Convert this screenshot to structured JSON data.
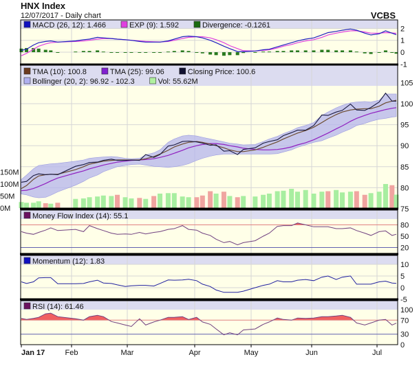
{
  "header": {
    "title": "HNX Index",
    "subtitle": "12/07/2017 - Daily chart",
    "brand": "VCBS"
  },
  "colors": {
    "plot_bg": "#ffffe8",
    "legend_bg": "#dcdcf0",
    "grid": "#d6d6d6",
    "macd": "#2020c0",
    "signal": "#e040e0",
    "divergence": "#2a7a20",
    "close": "#1a1a40",
    "tma10": "#6b4a2e",
    "tma25": "#9020c0",
    "bollinger": "#b4b4ec",
    "vol_up": "#a8eea0",
    "vol_down": "#f0a4a0",
    "mfi": "#704080",
    "momentum": "#2020a0",
    "rsi": "#704080",
    "overbought": "#e08080",
    "oversold": "#6060b0",
    "rsi_fill": "#f06060"
  },
  "legends": {
    "macd": [
      {
        "label": "MACD (26, 12): 1.466",
        "color": "#1010c0"
      },
      {
        "label": "EXP (9): 1.592",
        "color": "#e040e0"
      },
      {
        "label": "Divergence: -0.1261",
        "color": "#1a6a10"
      }
    ],
    "price_row1": [
      {
        "label": "TMA (10): 100.8",
        "color": "#6b3a1e"
      },
      {
        "label": "TMA (25): 99.06",
        "color": "#8020d0"
      },
      {
        "label": "Closing Price: 100.6",
        "color": "#101030"
      }
    ],
    "price_row2": [
      {
        "label": "Bollinger (20, 2): 96.92 - 102.3",
        "color": "#b0b0f0"
      },
      {
        "label": "Vol: 55.62M",
        "color": "#b0f0a0"
      }
    ],
    "mfi": [
      {
        "label": "Money Flow Index (14): 55.1",
        "color": "#6a1060"
      }
    ],
    "momentum": [
      {
        "label": "Momentum (12): 1.83",
        "color": "#1010c0"
      }
    ],
    "rsi": [
      {
        "label": "RSI (14): 61.46",
        "color": "#6a1060"
      }
    ]
  },
  "chart_data": {
    "type": "line",
    "x_ticks": [
      "Jan 17",
      "Feb",
      "Mar",
      "Apr",
      "May",
      "Jun",
      "Jul"
    ],
    "dates": [
      "2017-01-03",
      "2017-01-06",
      "2017-01-10",
      "2017-01-13",
      "2017-01-17",
      "2017-01-20",
      "2017-01-24",
      "2017-02-03",
      "2017-02-07",
      "2017-02-10",
      "2017-02-14",
      "2017-02-17",
      "2017-02-21",
      "2017-02-24",
      "2017-02-28",
      "2017-03-03",
      "2017-03-07",
      "2017-03-10",
      "2017-03-14",
      "2017-03-17",
      "2017-03-21",
      "2017-03-24",
      "2017-03-28",
      "2017-03-31",
      "2017-04-04",
      "2017-04-07",
      "2017-04-11",
      "2017-04-14",
      "2017-04-18",
      "2017-04-21",
      "2017-04-25",
      "2017-04-28",
      "2017-05-04",
      "2017-05-08",
      "2017-05-11",
      "2017-05-15",
      "2017-05-18",
      "2017-05-22",
      "2017-05-25",
      "2017-05-29",
      "2017-06-02",
      "2017-06-06",
      "2017-06-09",
      "2017-06-13",
      "2017-06-16",
      "2017-06-20",
      "2017-06-23",
      "2017-06-27",
      "2017-06-30",
      "2017-07-04",
      "2017-07-07",
      "2017-07-10",
      "2017-07-12"
    ],
    "panels": {
      "macd": {
        "y_ticks": [
          2,
          1,
          0,
          -1
        ],
        "ylim": [
          -1,
          2.6
        ],
        "macd": [
          0.15,
          0.25,
          0.6,
          0.8,
          0.9,
          0.95,
          0.85,
          0.95,
          1.05,
          1.1,
          1.25,
          1.2,
          1.15,
          1.1,
          1.05,
          1.0,
          0.9,
          0.85,
          0.85,
          0.85,
          0.95,
          1.1,
          1.3,
          1.35,
          1.3,
          1.2,
          1.0,
          0.8,
          0.5,
          0.3,
          0.05,
          0.05,
          0.1,
          0.2,
          0.25,
          0.45,
          0.6,
          0.8,
          0.95,
          1.1,
          1.2,
          1.45,
          1.65,
          1.75,
          1.85,
          1.95,
          1.85,
          1.6,
          1.45,
          1.55,
          1.8,
          1.6,
          1.466
        ],
        "signal": [
          -0.3,
          -0.1,
          0.25,
          0.5,
          0.7,
          0.8,
          0.85,
          0.9,
          0.95,
          1.0,
          1.1,
          1.15,
          1.15,
          1.1,
          1.05,
          1.0,
          0.95,
          0.9,
          0.88,
          0.86,
          0.9,
          1.0,
          1.15,
          1.25,
          1.3,
          1.3,
          1.2,
          1.05,
          0.8,
          0.55,
          0.3,
          0.12,
          0.1,
          0.15,
          0.2,
          0.35,
          0.5,
          0.65,
          0.8,
          0.95,
          1.05,
          1.25,
          1.45,
          1.6,
          1.7,
          1.8,
          1.8,
          1.7,
          1.6,
          1.6,
          1.65,
          1.62,
          1.592
        ],
        "divergence": [
          0.3,
          0.35,
          0.35,
          0.3,
          0.2,
          0.15,
          0,
          0.05,
          0.1,
          0.1,
          0.15,
          0.05,
          0,
          0,
          0,
          0,
          -0.05,
          -0.05,
          -0.03,
          -0.01,
          0.05,
          0.1,
          0.15,
          0.1,
          0,
          -0.1,
          -0.2,
          -0.25,
          -0.3,
          -0.25,
          -0.25,
          -0.07,
          0,
          0.05,
          0.05,
          0.1,
          0.1,
          0.15,
          0.15,
          0.15,
          0.15,
          0.2,
          0.2,
          0.15,
          0.15,
          0.15,
          0.05,
          -0.1,
          -0.15,
          -0.05,
          0.15,
          -0.02,
          -0.1261
        ]
      },
      "price": {
        "y_ticks": [
          105,
          100,
          95,
          90,
          85,
          80,
          75
        ],
        "ylim": [
          75,
          110
        ],
        "close": [
          81.3,
          81.5,
          82.9,
          83.3,
          83.1,
          83.2,
          83.1,
          85.1,
          85.5,
          86.0,
          86.1,
          86.5,
          86.8,
          86.5,
          86.5,
          86.6,
          86.5,
          87.9,
          87.2,
          87.9,
          89.9,
          90.2,
          91.0,
          91.1,
          90.9,
          90.6,
          90.1,
          90.2,
          88.7,
          88.8,
          87.9,
          89.1,
          89.5,
          90.6,
          91.0,
          91.4,
          92.4,
          93.1,
          93.7,
          93.7,
          94.8,
          97.3,
          97.2,
          98.0,
          98.4,
          99.9,
          98.5,
          98.4,
          99.1,
          100.4,
          102.5,
          100.6,
          100.6
        ],
        "tma10": [
          79.8,
          80.5,
          82.0,
          82.8,
          83.1,
          83.2,
          83.2,
          84.3,
          85.0,
          85.6,
          86.0,
          86.3,
          86.5,
          86.6,
          86.6,
          86.6,
          86.6,
          86.9,
          87.4,
          88.0,
          88.9,
          89.7,
          90.4,
          90.8,
          91.0,
          90.8,
          90.4,
          90.0,
          89.5,
          89.0,
          88.6,
          88.6,
          89.0,
          89.6,
          90.2,
          90.9,
          91.6,
          92.4,
          93.0,
          93.6,
          94.4,
          95.5,
          96.4,
          97.4,
          98.0,
          98.5,
          98.7,
          98.8,
          98.8,
          99.4,
          100.2,
          100.6,
          100.8
        ],
        "tma25": [
          79.3,
          79.4,
          79.8,
          80.3,
          81.0,
          81.6,
          82.3,
          83.5,
          84.0,
          84.5,
          85.0,
          85.4,
          85.8,
          86.1,
          86.3,
          86.5,
          86.6,
          86.7,
          86.9,
          87.2,
          87.7,
          88.2,
          88.9,
          89.5,
          90.0,
          90.3,
          90.5,
          90.5,
          90.3,
          90.0,
          89.7,
          89.4,
          89.1,
          89.0,
          89.0,
          89.1,
          89.3,
          89.7,
          90.2,
          90.7,
          91.4,
          92.3,
          93.0,
          94.0,
          94.7,
          95.8,
          96.5,
          97.2,
          97.7,
          98.2,
          98.6,
          98.9,
          99.06
        ],
        "bollinger_upper": [
          82.0,
          83.0,
          84.5,
          85.3,
          85.5,
          85.7,
          85.8,
          86.3,
          86.6,
          87.0,
          87.2,
          87.3,
          87.4,
          87.3,
          87.0,
          86.9,
          87.0,
          87.8,
          88.3,
          89.0,
          90.8,
          91.6,
          92.3,
          92.5,
          92.3,
          92.0,
          91.6,
          91.3,
          90.9,
          90.6,
          90.4,
          90.2,
          90.3,
          91.0,
          91.6,
          92.2,
          92.9,
          93.6,
          94.3,
          94.8,
          95.5,
          97.2,
          98.0,
          99.0,
          99.6,
          100.2,
          100.4,
          100.5,
          100.4,
          100.8,
          102.3,
          102.3,
          102.3
        ],
        "bollinger_lower": [
          78.5,
          78.3,
          77.8,
          77.6,
          77.7,
          78.2,
          79.0,
          80.6,
          81.5,
          82.3,
          83.0,
          83.8,
          84.5,
          85.0,
          85.3,
          85.5,
          85.6,
          85.4,
          85.1,
          85.0,
          84.8,
          85.0,
          85.3,
          85.7,
          86.5,
          87.0,
          87.5,
          87.8,
          88.0,
          88.0,
          88.0,
          88.0,
          88.0,
          88.0,
          88.0,
          88.1,
          88.5,
          89.0,
          89.6,
          90.2,
          90.8,
          91.2,
          91.8,
          92.5,
          93.2,
          94.0,
          94.8,
          95.3,
          95.8,
          96.3,
          96.5,
          96.8,
          96.92
        ],
        "volume_ticks": [
          "150M",
          "100M",
          "50M",
          "0M"
        ],
        "volume_m": [
          25,
          22,
          22,
          28,
          20,
          18,
          22,
          38,
          40,
          45,
          48,
          52,
          50,
          55,
          45,
          40,
          42,
          38,
          50,
          60,
          62,
          62,
          48,
          45,
          45,
          52,
          70,
          60,
          68,
          50,
          45,
          50,
          48,
          55,
          60,
          70,
          72,
          80,
          68,
          75,
          60,
          68,
          70,
          75,
          65,
          68,
          70,
          55,
          62,
          68,
          100,
          95,
          55.62
        ]
      },
      "mfi": {
        "y_ticks": [
          80,
          50,
          20
        ],
        "levels": [
          80,
          20
        ],
        "values": [
          62,
          58,
          55,
          60,
          66,
          72,
          65,
          68,
          62,
          78,
          70,
          65,
          58,
          55,
          56,
          55,
          60,
          56,
          60,
          62,
          68,
          70,
          78,
          68,
          66,
          58,
          52,
          42,
          33,
          36,
          27,
          33,
          38,
          50,
          58,
          76,
          78,
          78,
          85,
          80,
          75,
          75,
          75,
          70,
          70,
          72,
          65,
          58,
          52,
          62,
          64,
          52,
          55.1
        ]
      },
      "momentum": {
        "y_ticks": [
          10,
          5,
          0,
          -5
        ],
        "values": [
          2.5,
          1.8,
          2.5,
          4.2,
          4.3,
          4.3,
          1.7,
          1.7,
          1.8,
          2.5,
          3.2,
          2.0,
          1.8,
          1.2,
          0.5,
          0.8,
          1.0,
          1.0,
          0.7,
          1.8,
          3.3,
          3.2,
          3.3,
          3.6,
          3.0,
          1.5,
          0.5,
          -1.0,
          -2.0,
          -2.0,
          -2.0,
          -1.5,
          0,
          1.0,
          1.5,
          3.0,
          2.5,
          2.5,
          3.2,
          3.5,
          3.0,
          4.5,
          5.0,
          3.5,
          4.5,
          5.0,
          1.5,
          1.5,
          1.5,
          2.5,
          2.8,
          2.0,
          1.83
        ]
      },
      "rsi": {
        "y_ticks": [
          100,
          70,
          30,
          0
        ],
        "levels": [
          70,
          30
        ],
        "values": [
          75,
          72,
          75,
          78,
          88,
          90,
          80,
          74,
          70,
          80,
          84,
          80,
          66,
          62,
          56,
          52,
          74,
          56,
          65,
          70,
          78,
          78,
          80,
          72,
          78,
          65,
          58,
          45,
          28,
          34,
          28,
          42,
          45,
          58,
          65,
          76,
          72,
          70,
          76,
          75,
          76,
          80,
          80,
          82,
          84,
          78,
          62,
          56,
          62,
          70,
          72,
          56,
          61.46
        ]
      }
    }
  }
}
